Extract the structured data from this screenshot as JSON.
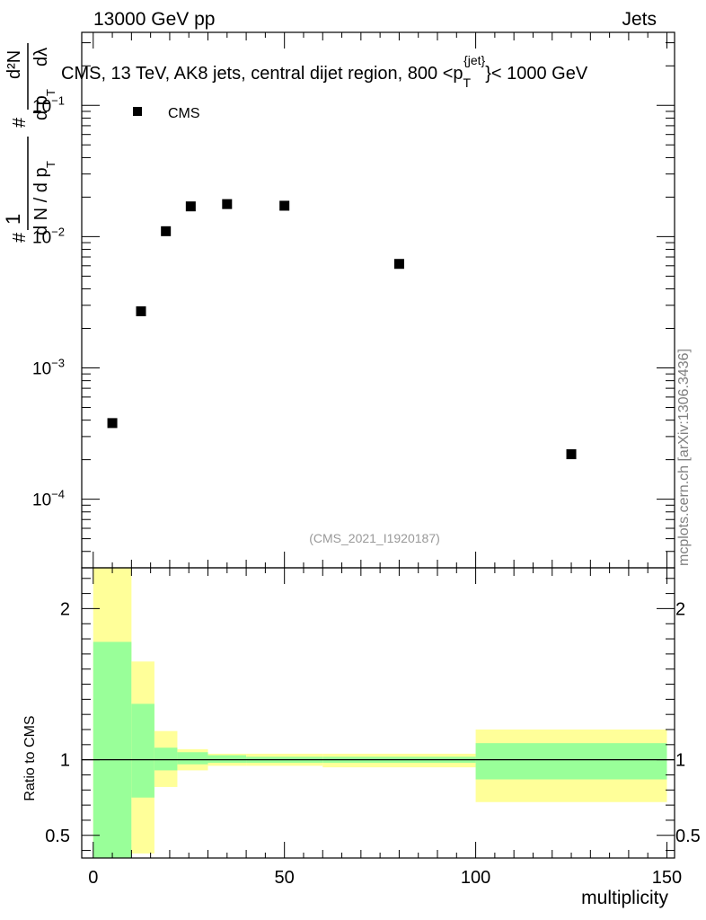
{
  "header": {
    "energy_label": "13000 GeV pp",
    "category_label": "Jets",
    "side_label": "mcplots.cern.ch [arXiv:1306.3436]"
  },
  "main_panel": {
    "title_prefix": "CMS, 13 TeV, AK8 jets, central dijet region, 800 <p",
    "title_sub": "T",
    "title_sup": "{jet}",
    "title_suffix": "}< 1000 GeV",
    "analysis_id": "(CMS_2021_I1920187)",
    "legend_label": "CMS",
    "ylabel_parts": {
      "hash1": "#",
      "one": "1",
      "dN": "d N / d p",
      "T1": "T",
      "hash2": "#",
      "dpT": "d p",
      "T2": "T",
      "d2N": "d²N",
      "dlam": "dλ"
    }
  },
  "ratio_panel": {
    "ylabel": "Ratio to CMS",
    "xlabel": "multiplicity"
  },
  "colors": {
    "inner_band": "#99ff99",
    "outer_band": "#ffff99",
    "marker": "#000000",
    "side_label": "#808080",
    "analysis_id": "#999999"
  },
  "chart_data": [
    {
      "type": "scatter",
      "panel": "main",
      "x_scale": "linear",
      "y_scale": "log",
      "xlim": [
        -3,
        152
      ],
      "ylim": [
        3e-05,
        0.36
      ],
      "y_ticks": [
        0.0001,
        0.001,
        0.01,
        0.1
      ],
      "y_tick_labels": [
        "10^-4",
        "10^-3",
        "10^-2",
        "10^-1"
      ],
      "series": [
        {
          "name": "CMS",
          "x": [
            5,
            12.5,
            19,
            25.5,
            35,
            50,
            80,
            125
          ],
          "y": [
            0.00038,
            0.0027,
            0.011,
            0.017,
            0.0177,
            0.0172,
            0.0062,
            0.00022
          ]
        }
      ]
    },
    {
      "type": "area",
      "panel": "ratio",
      "x_scale": "linear",
      "y_scale": "linear",
      "xlim": [
        -3,
        152
      ],
      "ylim": [
        0.35,
        2.27
      ],
      "x_ticks": [
        0,
        50,
        100,
        150
      ],
      "x_tick_labels": [
        "0",
        "50",
        "100",
        "150"
      ],
      "y_ticks": [
        0.5,
        1,
        2
      ],
      "y_tick_labels": [
        "0.5",
        "1",
        "2"
      ],
      "reference_line": 1,
      "bins": [
        {
          "lo": 0,
          "hi": 10,
          "inner": [
            0.35,
            1.78
          ],
          "outer": [
            0.35,
            2.27
          ]
        },
        {
          "lo": 10,
          "hi": 16,
          "inner": [
            0.75,
            1.37
          ],
          "outer": [
            0.38,
            1.65
          ]
        },
        {
          "lo": 16,
          "hi": 22,
          "inner": [
            0.93,
            1.08
          ],
          "outer": [
            0.82,
            1.19
          ]
        },
        {
          "lo": 22,
          "hi": 30,
          "inner": [
            0.97,
            1.05
          ],
          "outer": [
            0.93,
            1.07
          ]
        },
        {
          "lo": 30,
          "hi": 40,
          "inner": [
            0.98,
            1.03
          ],
          "outer": [
            0.96,
            1.04
          ]
        },
        {
          "lo": 40,
          "hi": 60,
          "inner": [
            0.98,
            1.02
          ],
          "outer": [
            0.96,
            1.04
          ]
        },
        {
          "lo": 60,
          "hi": 100,
          "inner": [
            0.98,
            1.02
          ],
          "outer": [
            0.95,
            1.04
          ]
        },
        {
          "lo": 100,
          "hi": 150,
          "inner": [
            0.87,
            1.11
          ],
          "outer": [
            0.72,
            1.2
          ]
        }
      ]
    }
  ]
}
